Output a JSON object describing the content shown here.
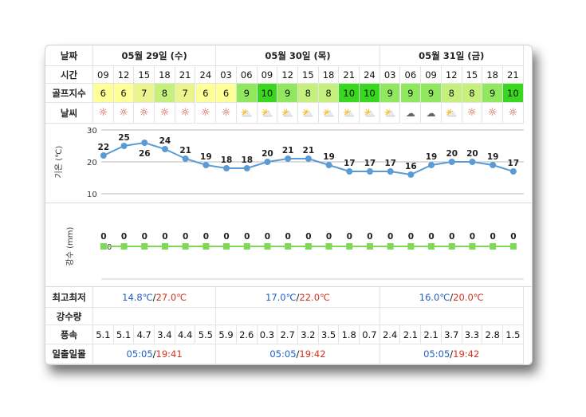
{
  "labels": {
    "date": "날짜",
    "time": "시간",
    "golf": "골프지수",
    "weather": "날씨",
    "temp_axis": "기온 (℃)",
    "rain_axis": "강수 (mm)",
    "minmax": "최고최저",
    "precip": "강수량",
    "wind": "풍속",
    "sun": "일출일몰"
  },
  "days": [
    {
      "label": "05월 29일 (수)",
      "min": "14.8℃",
      "max": "27.0℃",
      "sunrise": "05:05",
      "sunset": "19:41"
    },
    {
      "label": "05월 30일 (목)",
      "min": "17.0℃",
      "max": "22.0℃",
      "sunrise": "05:05",
      "sunset": "19:42"
    },
    {
      "label": "05월 31일 (금)",
      "min": "16.0℃",
      "max": "20.0℃",
      "sunrise": "05:05",
      "sunset": "19:42"
    }
  ],
  "hours": [
    "09",
    "12",
    "15",
    "18",
    "21",
    "24",
    "03",
    "06",
    "09",
    "12",
    "15",
    "18",
    "21",
    "24",
    "03",
    "06",
    "09",
    "12",
    "15",
    "18",
    "21"
  ],
  "golf_index": [
    6,
    6,
    7,
    8,
    7,
    6,
    6,
    9,
    10,
    9,
    8,
    8,
    10,
    10,
    9,
    9,
    9,
    8,
    8,
    9,
    10
  ],
  "golf_colors": {
    "6": "#ffff99",
    "7": "#eaf590",
    "8": "#c6f07e",
    "9": "#8fe85d",
    "10": "#38d81f"
  },
  "weather_icons": [
    "sun-icon",
    "sun-icon",
    "sun-icon",
    "sun-icon",
    "sun-icon",
    "sun-icon",
    "sun-icon",
    "partly-cloudy-icon",
    "partly-cloudy-icon",
    "partly-cloudy-icon",
    "partly-cloudy-icon",
    "partly-cloudy-icon",
    "partly-cloudy-icon",
    "partly-cloudy-icon",
    "partly-cloudy-icon",
    "cloud-icon",
    "cloud-icon",
    "partly-cloudy-icon",
    "sun-icon",
    "sun-icon",
    "sun-icon"
  ],
  "wind": [
    "5.1",
    "5.1",
    "4.7",
    "3.4",
    "4.4",
    "5.5",
    "5.9",
    "2.6",
    "0.3",
    "2.7",
    "3.2",
    "3.5",
    "1.8",
    "0.7",
    "2.4",
    "2.1",
    "2.1",
    "3.7",
    "3.3",
    "2.8",
    "1.5"
  ],
  "chart_data": [
    {
      "type": "line",
      "ylabel": "기온 (℃)",
      "ylim": [
        10,
        30
      ],
      "yticks": [
        10,
        20,
        30
      ],
      "x": [
        "09",
        "12",
        "15",
        "18",
        "21",
        "24",
        "03",
        "06",
        "09",
        "12",
        "15",
        "18",
        "21",
        "24",
        "03",
        "06",
        "09",
        "12",
        "15",
        "18",
        "21"
      ],
      "values": [
        22,
        25,
        26,
        24,
        21,
        19,
        18,
        18,
        20,
        21,
        21,
        19,
        17,
        17,
        17,
        16,
        19,
        20,
        20,
        19,
        17
      ],
      "color": "#5b9bd5",
      "grid": true
    },
    {
      "type": "line",
      "ylabel": "강수 (mm)",
      "yticks": [
        0
      ],
      "x": [
        "09",
        "12",
        "15",
        "18",
        "21",
        "24",
        "03",
        "06",
        "09",
        "12",
        "15",
        "18",
        "21",
        "24",
        "03",
        "06",
        "09",
        "12",
        "15",
        "18",
        "21"
      ],
      "values": [
        0,
        0,
        0,
        0,
        0,
        0,
        0,
        0,
        0,
        0,
        0,
        0,
        0,
        0,
        0,
        0,
        0,
        0,
        0,
        0,
        0
      ],
      "color": "#7ed957"
    }
  ]
}
